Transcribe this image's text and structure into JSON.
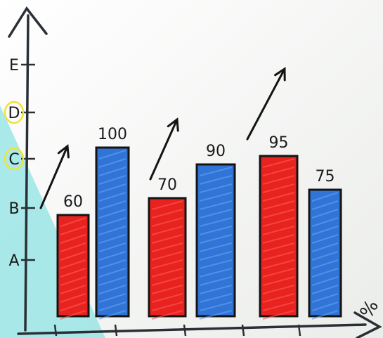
{
  "chart_data": {
    "type": "bar",
    "title": "",
    "xlabel": "",
    "ylabel": "",
    "unit": "%",
    "y_tick_labels": [
      "A",
      "B",
      "C",
      "D",
      "E"
    ],
    "highlighted_ticks": [
      "C",
      "D"
    ],
    "ylim": [
      0,
      110
    ],
    "categories": [
      "",
      "",
      ""
    ],
    "series": [
      {
        "values": [
          60,
          70,
          95
        ],
        "color": "#e8231f"
      },
      {
        "values": [
          100,
          90,
          75
        ],
        "color": "#2f74d6"
      }
    ],
    "data_labels": [
      "60",
      "100",
      "70",
      "90",
      "95",
      "75"
    ],
    "trend_arrows": true,
    "grid": false,
    "legend": "none"
  }
}
